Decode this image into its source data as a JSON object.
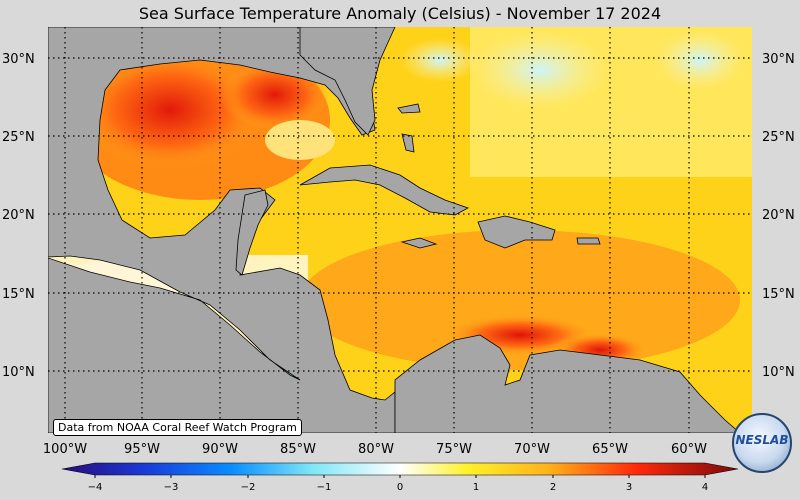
{
  "title": "Sea Surface Temperature Anomaly (Celsius) - November 17 2024",
  "credit": "Data from NOAA Coral Reef Watch Program",
  "logo_text": "NESLAB",
  "lat_labels": [
    "30°N",
    "25°N",
    "20°N",
    "15°N",
    "10°N"
  ],
  "lon_labels": [
    "100°W",
    "95°W",
    "90°W",
    "85°W",
    "80°W",
    "75°W",
    "70°W",
    "65°W",
    "60°W"
  ],
  "colorbar": {
    "min": -4,
    "max": 4,
    "ticks": [
      "−4",
      "−3",
      "−2",
      "−1",
      "0",
      "1",
      "2",
      "3",
      "4"
    ]
  },
  "map": {
    "lat_range": [
      6,
      32
    ],
    "lon_range": [
      -101,
      -57
    ],
    "colors": {
      "land": "#a6a6a6",
      "ocean_warm": "#ffd21a",
      "ocean_hot": "#ff4a0a",
      "ocean_cool": "#3fb6f0",
      "grid": "#000000"
    }
  }
}
